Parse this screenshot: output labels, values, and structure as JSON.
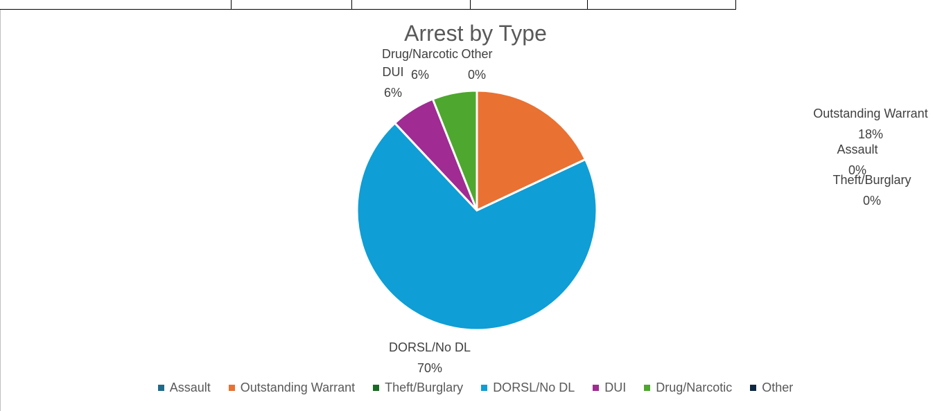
{
  "chart_data": {
    "type": "pie",
    "title": "Arrest by Type",
    "categories": [
      "Assault",
      "Outstanding Warrant",
      "Theft/Burglary",
      "DORSL/No DL",
      "DUI",
      "Drug/Narcotic",
      "Other"
    ],
    "values": [
      0,
      18,
      0,
      70,
      6,
      6,
      0
    ],
    "data_labels": [
      "0%",
      "18%",
      "0%",
      "70%",
      "6%",
      "6%",
      "0%"
    ],
    "colors": [
      "#1f6b8a",
      "#e97132",
      "#196b24",
      "#0f9ed5",
      "#a02b93",
      "#4ea72e",
      "#0e2841"
    ],
    "legend_position": "bottom"
  }
}
